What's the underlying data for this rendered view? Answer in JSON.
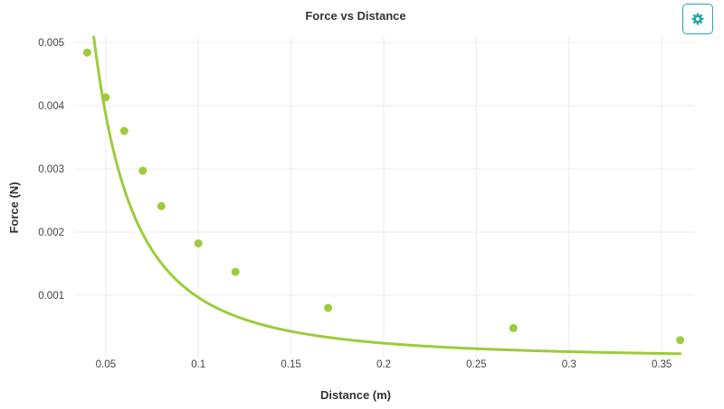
{
  "toolbar": {
    "settings_icon": "gear-icon",
    "accent_color": "#26a6a6"
  },
  "chart_data": {
    "type": "scatter",
    "title": "Force vs Distance",
    "xlabel": "Distance (m)",
    "ylabel": "Force (N)",
    "xlim": [
      0.033,
      0.368
    ],
    "ylim": [
      0.0,
      0.0051
    ],
    "xticks": [
      {
        "value": 0.05,
        "label": "0.05"
      },
      {
        "value": 0.1,
        "label": "0.1"
      },
      {
        "value": 0.15,
        "label": "0.15"
      },
      {
        "value": 0.2,
        "label": "0.2"
      },
      {
        "value": 0.25,
        "label": "0.25"
      },
      {
        "value": 0.3,
        "label": "0.3"
      },
      {
        "value": 0.35,
        "label": "0.35"
      }
    ],
    "yticks": [
      {
        "value": 0.001,
        "label": "0.001"
      },
      {
        "value": 0.002,
        "label": "0.002"
      },
      {
        "value": 0.003,
        "label": "0.003"
      },
      {
        "value": 0.004,
        "label": "0.004"
      },
      {
        "value": 0.005,
        "label": "0.005"
      }
    ],
    "grid": true,
    "color": "#9ccc3c",
    "points": [
      {
        "x": 0.04,
        "y": 0.00484
      },
      {
        "x": 0.05,
        "y": 0.00413
      },
      {
        "x": 0.06,
        "y": 0.0036
      },
      {
        "x": 0.07,
        "y": 0.00297
      },
      {
        "x": 0.08,
        "y": 0.00241
      },
      {
        "x": 0.1,
        "y": 0.00182
      },
      {
        "x": 0.12,
        "y": 0.00137
      },
      {
        "x": 0.17,
        "y": 0.0008
      },
      {
        "x": 0.27,
        "y": 0.00048
      },
      {
        "x": 0.36,
        "y": 0.00029
      }
    ],
    "fit_curve": {
      "equation": "y = k / x^2",
      "k": 9.65e-06,
      "x_range": [
        0.0435,
        0.36
      ]
    }
  }
}
